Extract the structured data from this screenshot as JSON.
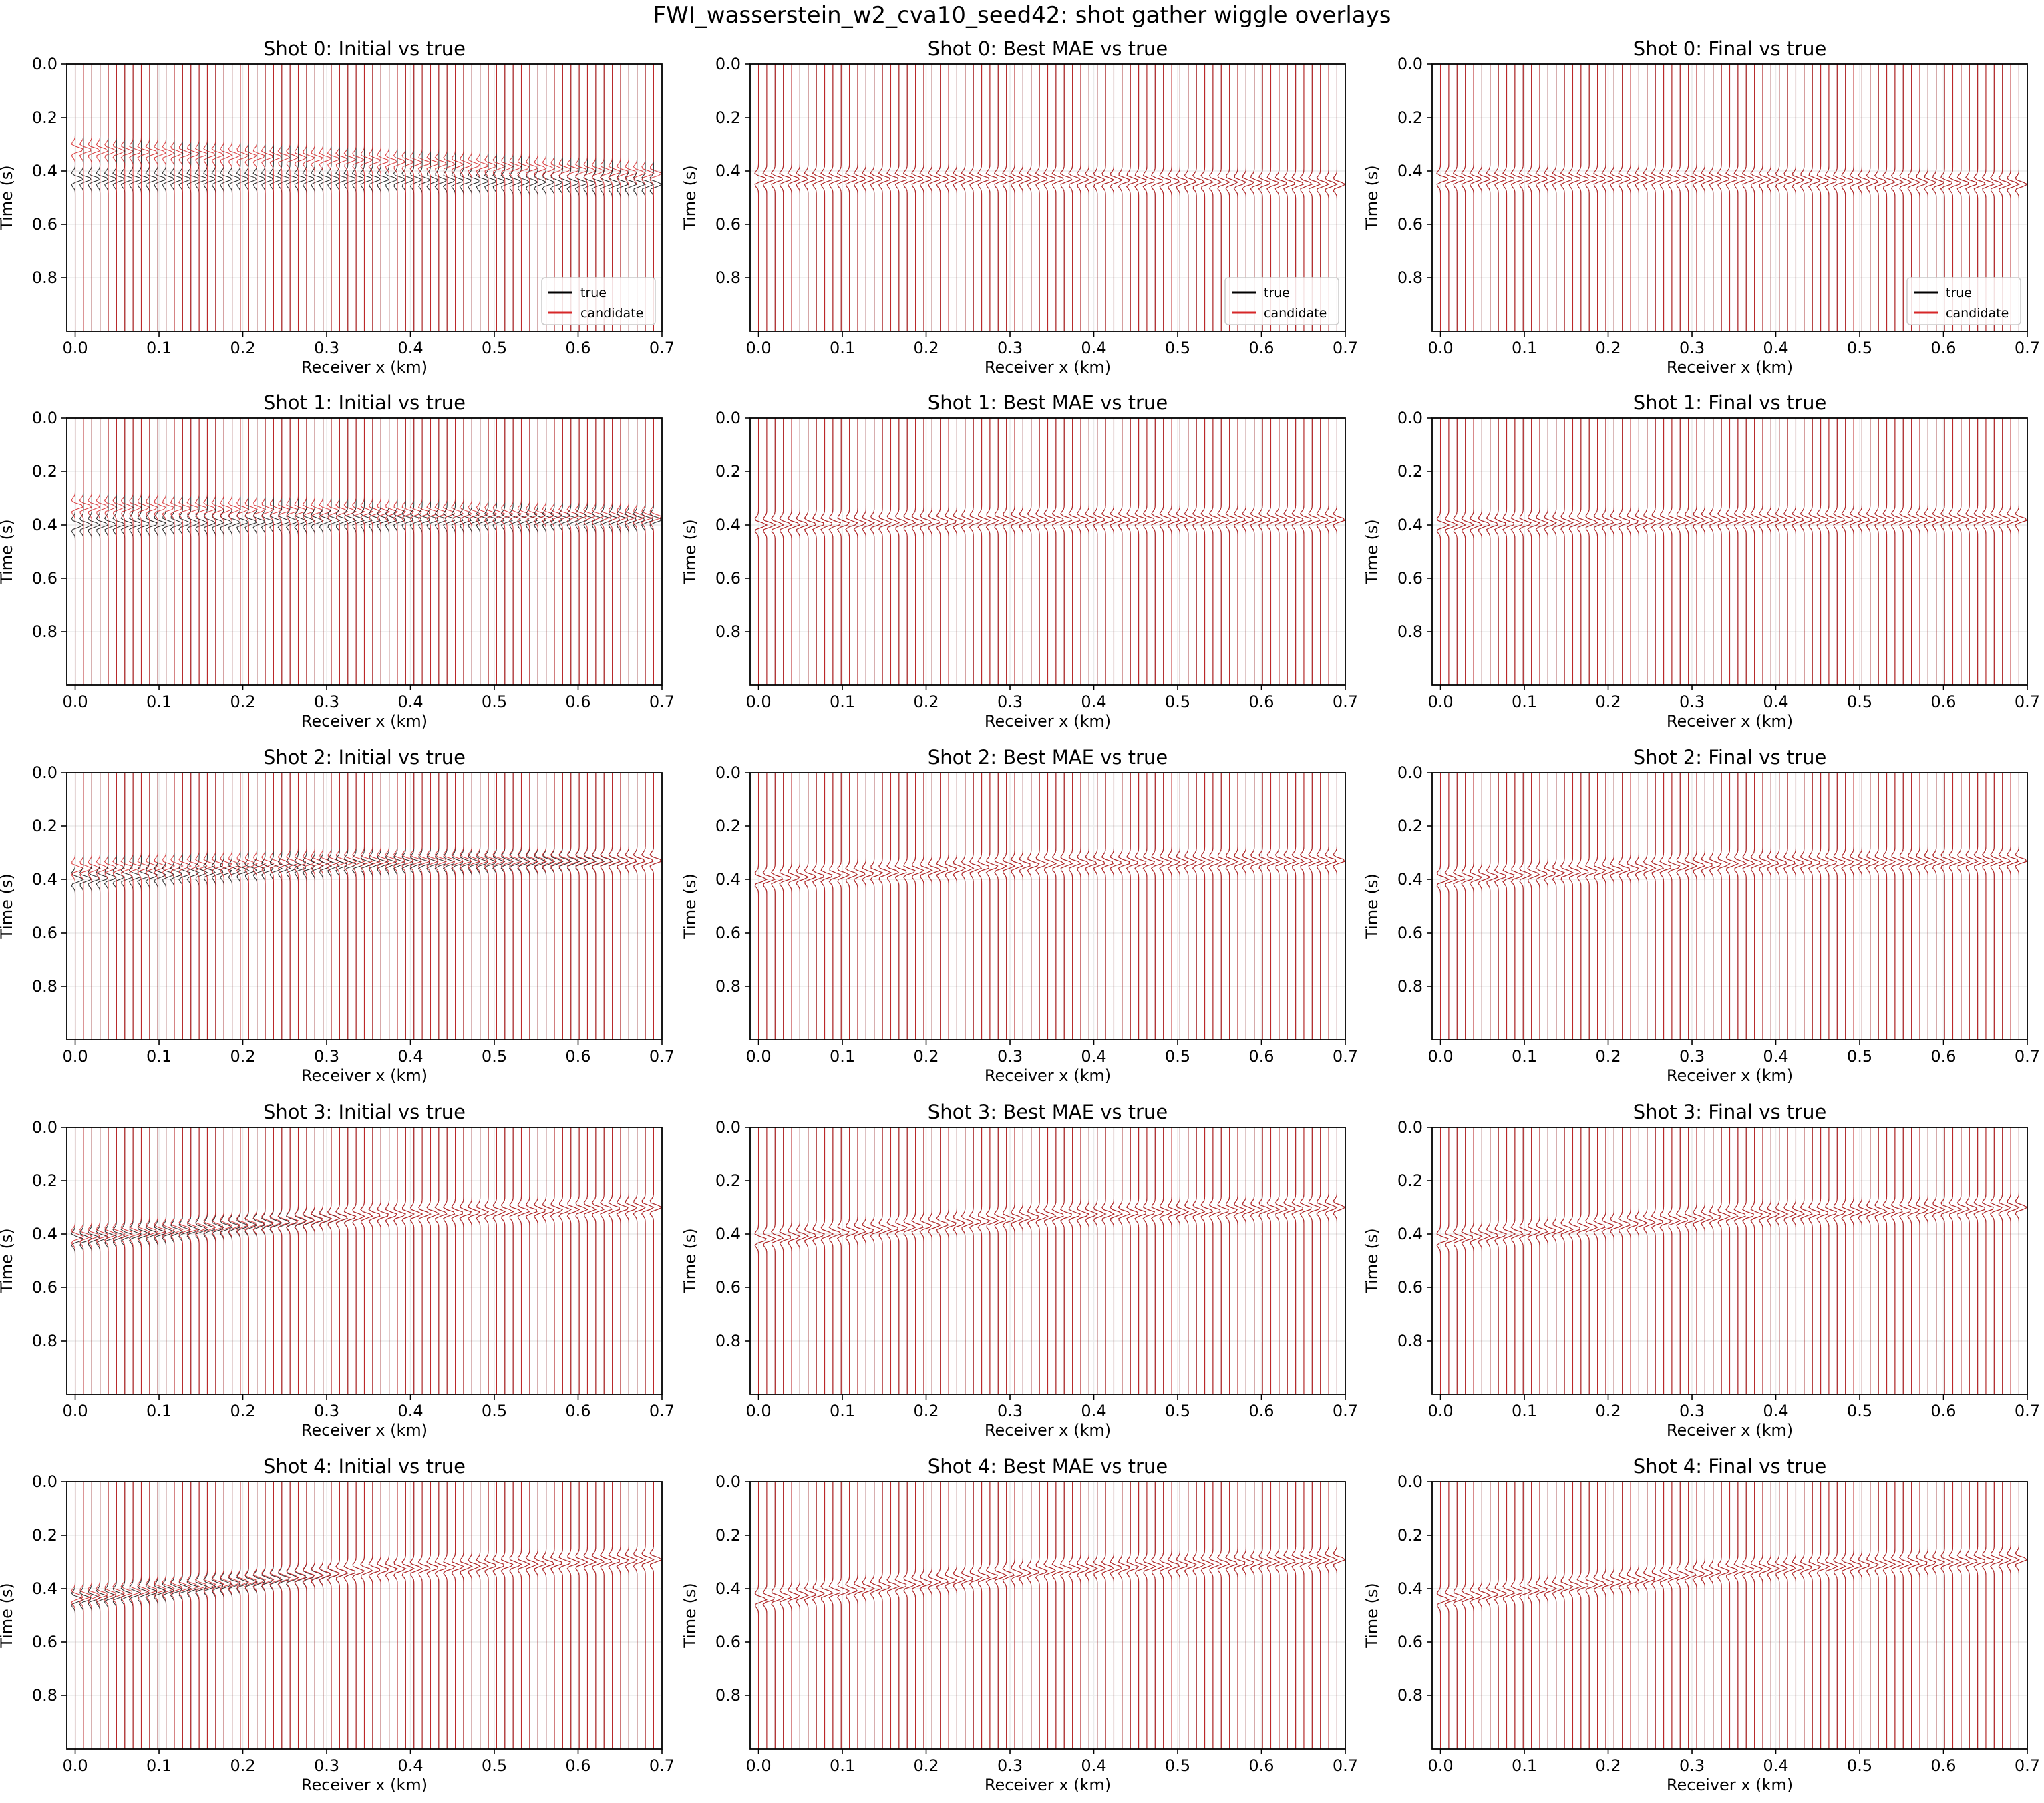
{
  "figure_title": "FWI_wasserstein_w2_cva10_seed42: shot gather wiggle overlays",
  "colors": {
    "true": "#000000",
    "candidate": "#d62728",
    "grid": "#ebebeb"
  },
  "chart_data": {
    "type": "line",
    "layout": "grid 5 rows x 3 columns",
    "xlabel": "Receiver x (km)",
    "ylabel": "Time (s)",
    "xlim": [
      -0.01,
      0.7
    ],
    "ylim": [
      1.0,
      0.0
    ],
    "y_inverted": true,
    "xticks": [
      "0.0",
      "0.1",
      "0.2",
      "0.3",
      "0.4",
      "0.5",
      "0.6",
      "0.7"
    ],
    "yticks": [
      "0.0",
      "0.2",
      "0.4",
      "0.6",
      "0.8"
    ],
    "grid": true,
    "legend": {
      "entries": [
        "true",
        "candidate"
      ],
      "placement": "lower right",
      "shown_in_row": 0
    },
    "receivers": {
      "count": 71,
      "x_start_km": 0.0,
      "x_end_km": 0.69
    },
    "series_names": [
      "true",
      "candidate"
    ],
    "columns": [
      "Initial",
      "Best MAE",
      "Final"
    ],
    "shots": [
      {
        "shot": 0,
        "true_arrival": {
          "x": [
            0.0,
            0.35,
            0.69
          ],
          "t": [
            0.43,
            0.43,
            0.45
          ]
        },
        "panels": [
          {
            "title": "Shot 0: Initial vs true",
            "candidate_arrival": {
              "x": [
                0.0,
                0.35,
                0.69
              ],
              "t": [
                0.32,
                0.36,
                0.41
              ]
            }
          },
          {
            "title": "Shot 0: Best MAE vs true",
            "candidate_arrival": {
              "x": [
                0.0,
                0.35,
                0.69
              ],
              "t": [
                0.43,
                0.43,
                0.45
              ]
            }
          },
          {
            "title": "Shot 0: Final vs true",
            "candidate_arrival": {
              "x": [
                0.0,
                0.35,
                0.69
              ],
              "t": [
                0.43,
                0.43,
                0.45
              ]
            }
          }
        ]
      },
      {
        "shot": 1,
        "true_arrival": {
          "x": [
            0.0,
            0.35,
            0.69
          ],
          "t": [
            0.4,
            0.38,
            0.38
          ]
        },
        "panels": [
          {
            "title": "Shot 1: Initial vs true",
            "candidate_arrival": {
              "x": [
                0.0,
                0.35,
                0.69
              ],
              "t": [
                0.33,
                0.35,
                0.37
              ]
            }
          },
          {
            "title": "Shot 1: Best MAE vs true",
            "candidate_arrival": {
              "x": [
                0.0,
                0.35,
                0.69
              ],
              "t": [
                0.4,
                0.38,
                0.38
              ]
            }
          },
          {
            "title": "Shot 1: Final vs true",
            "candidate_arrival": {
              "x": [
                0.0,
                0.35,
                0.69
              ],
              "t": [
                0.4,
                0.38,
                0.38
              ]
            }
          }
        ]
      },
      {
        "shot": 2,
        "true_arrival": {
          "x": [
            0.0,
            0.35,
            0.69
          ],
          "t": [
            0.4,
            0.34,
            0.33
          ]
        },
        "panels": [
          {
            "title": "Shot 2: Initial vs true",
            "candidate_arrival": {
              "x": [
                0.0,
                0.35,
                0.69
              ],
              "t": [
                0.36,
                0.33,
                0.33
              ]
            }
          },
          {
            "title": "Shot 2: Best MAE vs true",
            "candidate_arrival": {
              "x": [
                0.0,
                0.35,
                0.69
              ],
              "t": [
                0.4,
                0.34,
                0.33
              ]
            }
          },
          {
            "title": "Shot 2: Final vs true",
            "candidate_arrival": {
              "x": [
                0.0,
                0.35,
                0.69
              ],
              "t": [
                0.4,
                0.34,
                0.33
              ]
            }
          }
        ]
      },
      {
        "shot": 3,
        "true_arrival": {
          "x": [
            0.0,
            0.35,
            0.69
          ],
          "t": [
            0.42,
            0.33,
            0.3
          ]
        },
        "panels": [
          {
            "title": "Shot 3: Initial vs true",
            "candidate_arrival": {
              "x": [
                0.0,
                0.35,
                0.69
              ],
              "t": [
                0.41,
                0.33,
                0.3
              ]
            }
          },
          {
            "title": "Shot 3: Best MAE vs true",
            "candidate_arrival": {
              "x": [
                0.0,
                0.35,
                0.69
              ],
              "t": [
                0.42,
                0.33,
                0.3
              ]
            }
          },
          {
            "title": "Shot 3: Final vs true",
            "candidate_arrival": {
              "x": [
                0.0,
                0.35,
                0.69
              ],
              "t": [
                0.42,
                0.33,
                0.3
              ]
            }
          }
        ]
      },
      {
        "shot": 4,
        "true_arrival": {
          "x": [
            0.0,
            0.35,
            0.69
          ],
          "t": [
            0.44,
            0.33,
            0.29
          ]
        },
        "panels": [
          {
            "title": "Shot 4: Initial vs true",
            "candidate_arrival": {
              "x": [
                0.0,
                0.35,
                0.69
              ],
              "t": [
                0.43,
                0.33,
                0.29
              ]
            }
          },
          {
            "title": "Shot 4: Best MAE vs true",
            "candidate_arrival": {
              "x": [
                0.0,
                0.35,
                0.69
              ],
              "t": [
                0.44,
                0.33,
                0.29
              ]
            }
          },
          {
            "title": "Shot 4: Final vs true",
            "candidate_arrival": {
              "x": [
                0.0,
                0.35,
                0.69
              ],
              "t": [
                0.44,
                0.33,
                0.29
              ]
            }
          }
        ]
      }
    ]
  }
}
